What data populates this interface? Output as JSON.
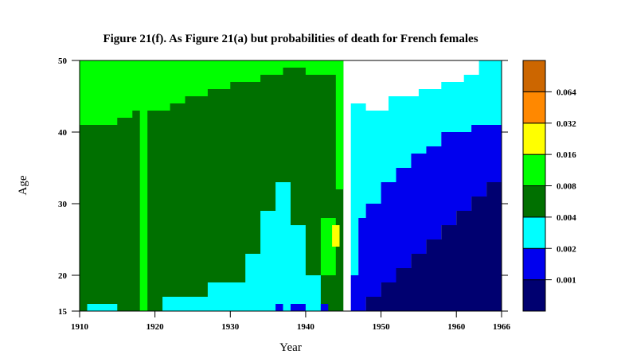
{
  "chart_data": {
    "type": "heatmap",
    "title": "Figure 21(f). As Figure 21(a) but probabilities of death for French females",
    "xlabel": "Year",
    "ylabel": "Age",
    "xlim": [
      1910,
      1966
    ],
    "ylim": [
      15,
      50
    ],
    "xticks": [
      1910,
      1920,
      1930,
      1940,
      1950,
      1960,
      1966
    ],
    "yticks": [
      15,
      20,
      30,
      40,
      50
    ],
    "legend_position": "right",
    "legend_levels": [
      {
        "lower": 0,
        "upper": 0.001,
        "color": "#000070",
        "label": ""
      },
      {
        "lower": 0.001,
        "upper": 0.002,
        "color": "#0000ee",
        "label": "0.001"
      },
      {
        "lower": 0.002,
        "upper": 0.004,
        "color": "#00ffff",
        "label": "0.002"
      },
      {
        "lower": 0.004,
        "upper": 0.008,
        "color": "#007000",
        "label": "0.004"
      },
      {
        "lower": 0.008,
        "upper": 0.016,
        "color": "#00ff00",
        "label": "0.008"
      },
      {
        "lower": 0.016,
        "upper": 0.032,
        "color": "#ffff00",
        "label": "0.016"
      },
      {
        "lower": 0.032,
        "upper": 0.064,
        "color": "#ff8800",
        "label": "0.032"
      },
      {
        "lower": 0.064,
        "upper": 0.128,
        "color": "#cc6600",
        "label": "0.064"
      }
    ],
    "regions": [
      {
        "level": 0.0043,
        "polygon": [
          [
            1910,
            15
          ],
          [
            1945,
            15
          ],
          [
            1945,
            50
          ],
          [
            1910,
            50
          ]
        ]
      },
      {
        "level": 0.0095,
        "polygon": [
          [
            1910,
            50
          ],
          [
            1945,
            50
          ],
          [
            1945,
            32
          ],
          [
            1944,
            32
          ],
          [
            1944,
            48
          ],
          [
            1940,
            48
          ],
          [
            1940,
            49
          ],
          [
            1937,
            49
          ],
          [
            1937,
            48
          ],
          [
            1934,
            48
          ],
          [
            1934,
            47
          ],
          [
            1930,
            47
          ],
          [
            1930,
            46
          ],
          [
            1927,
            46
          ],
          [
            1927,
            45
          ],
          [
            1924,
            45
          ],
          [
            1924,
            44
          ],
          [
            1922,
            44
          ],
          [
            1922,
            43
          ],
          [
            1918,
            43
          ],
          [
            1918,
            15
          ],
          [
            1919,
            15
          ],
          [
            1919,
            43
          ],
          [
            1917,
            43
          ],
          [
            1917,
            42
          ],
          [
            1915,
            42
          ],
          [
            1915,
            41
          ],
          [
            1910,
            41
          ]
        ]
      },
      {
        "level": 0.0095,
        "polygon": [
          [
            1942,
            28
          ],
          [
            1944,
            28
          ],
          [
            1944,
            20
          ],
          [
            1942,
            20
          ]
        ]
      },
      {
        "level": 0.02,
        "polygon": [
          [
            1943.5,
            27
          ],
          [
            1944.5,
            27
          ],
          [
            1944.5,
            24
          ],
          [
            1943.5,
            24
          ]
        ]
      },
      {
        "level": 0.0028,
        "polygon": [
          [
            1911,
            15
          ],
          [
            1915,
            15
          ],
          [
            1915,
            16
          ],
          [
            1911,
            16
          ]
        ]
      },
      {
        "level": 0.0028,
        "polygon": [
          [
            1921,
            15
          ],
          [
            1942,
            15
          ],
          [
            1942,
            20
          ],
          [
            1940,
            20
          ],
          [
            1940,
            27
          ],
          [
            1938,
            27
          ],
          [
            1938,
            33
          ],
          [
            1936,
            33
          ],
          [
            1936,
            29
          ],
          [
            1934,
            29
          ],
          [
            1934,
            23
          ],
          [
            1932,
            23
          ],
          [
            1932,
            19
          ],
          [
            1927,
            19
          ],
          [
            1927,
            17
          ],
          [
            1921,
            17
          ]
        ]
      },
      {
        "level": 0.0028,
        "polygon": [
          [
            1945,
            15
          ],
          [
            1946,
            15
          ],
          [
            1946,
            44
          ],
          [
            1948,
            44
          ],
          [
            1948,
            43
          ],
          [
            1951,
            43
          ],
          [
            1951,
            45
          ],
          [
            1955,
            45
          ],
          [
            1955,
            46
          ],
          [
            1958,
            46
          ],
          [
            1958,
            47
          ],
          [
            1961,
            47
          ],
          [
            1961,
            48
          ],
          [
            1963,
            48
          ],
          [
            1963,
            50
          ],
          [
            1966,
            50
          ],
          [
            1966,
            41
          ],
          [
            1962,
            41
          ],
          [
            1962,
            40
          ],
          [
            1958,
            40
          ],
          [
            1958,
            38
          ],
          [
            1956,
            38
          ],
          [
            1956,
            37
          ],
          [
            1954,
            37
          ],
          [
            1954,
            35
          ],
          [
            1952,
            35
          ],
          [
            1952,
            33
          ],
          [
            1950,
            33
          ],
          [
            1950,
            30
          ],
          [
            1948,
            30
          ],
          [
            1948,
            28
          ],
          [
            1947,
            28
          ],
          [
            1947,
            20
          ],
          [
            1946,
            20
          ],
          [
            1946,
            15
          ]
        ]
      },
      {
        "level": 0.0014,
        "polygon": [
          [
            1946,
            15
          ],
          [
            1948,
            15
          ],
          [
            1948,
            17
          ],
          [
            1950,
            17
          ],
          [
            1950,
            19
          ],
          [
            1952,
            19
          ],
          [
            1952,
            21
          ],
          [
            1954,
            21
          ],
          [
            1954,
            23
          ],
          [
            1956,
            23
          ],
          [
            1956,
            25
          ],
          [
            1958,
            25
          ],
          [
            1958,
            27
          ],
          [
            1960,
            27
          ],
          [
            1960,
            29
          ],
          [
            1962,
            29
          ],
          [
            1962,
            31
          ],
          [
            1964,
            31
          ],
          [
            1964,
            33
          ],
          [
            1966,
            33
          ],
          [
            1966,
            41
          ],
          [
            1962,
            41
          ],
          [
            1962,
            40
          ],
          [
            1958,
            40
          ],
          [
            1958,
            38
          ],
          [
            1956,
            38
          ],
          [
            1956,
            37
          ],
          [
            1954,
            37
          ],
          [
            1954,
            35
          ],
          [
            1952,
            35
          ],
          [
            1952,
            33
          ],
          [
            1950,
            33
          ],
          [
            1950,
            30
          ],
          [
            1948,
            30
          ],
          [
            1948,
            28
          ],
          [
            1947,
            28
          ],
          [
            1947,
            20
          ],
          [
            1946,
            20
          ]
        ]
      },
      {
        "level": 0.0014,
        "polygon": [
          [
            1936,
            15
          ],
          [
            1937,
            15
          ],
          [
            1937,
            16
          ],
          [
            1936,
            16
          ]
        ]
      },
      {
        "level": 0.0014,
        "polygon": [
          [
            1938,
            15
          ],
          [
            1940,
            15
          ],
          [
            1940,
            16
          ],
          [
            1938,
            16
          ]
        ]
      },
      {
        "level": 0.0014,
        "polygon": [
          [
            1942,
            15
          ],
          [
            1943,
            15
          ],
          [
            1943,
            16
          ],
          [
            1942,
            16
          ]
        ]
      },
      {
        "level": 0.0006,
        "polygon": [
          [
            1948,
            15
          ],
          [
            1966,
            15
          ],
          [
            1966,
            33
          ],
          [
            1964,
            33
          ],
          [
            1964,
            31
          ],
          [
            1962,
            31
          ],
          [
            1962,
            29
          ],
          [
            1960,
            29
          ],
          [
            1960,
            27
          ],
          [
            1958,
            27
          ],
          [
            1958,
            25
          ],
          [
            1956,
            25
          ],
          [
            1956,
            23
          ],
          [
            1954,
            23
          ],
          [
            1954,
            21
          ],
          [
            1952,
            21
          ],
          [
            1952,
            19
          ],
          [
            1950,
            19
          ],
          [
            1950,
            17
          ],
          [
            1948,
            17
          ]
        ]
      }
    ]
  }
}
